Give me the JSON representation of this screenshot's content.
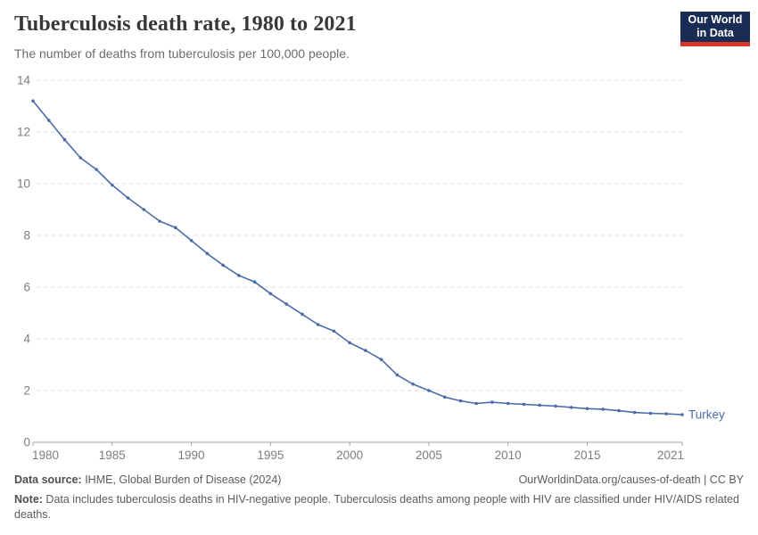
{
  "header": {
    "title": "Tuberculosis death rate, 1980 to 2021",
    "subtitle": "The number of deaths from tuberculosis per 100,000 people.",
    "logo": {
      "line1": "Our World",
      "line2": "in Data",
      "bg_color": "#192d54",
      "accent_color": "#d8352b"
    }
  },
  "chart_data": {
    "type": "line",
    "title": "Tuberculosis death rate, 1980 to 2021",
    "xlabel": "",
    "ylabel": "",
    "xlim": [
      1980,
      2021
    ],
    "ylim": [
      0,
      14
    ],
    "xticks": [
      1980,
      1985,
      1990,
      1995,
      2000,
      2005,
      2010,
      2015,
      2021
    ],
    "yticks": [
      0,
      2,
      4,
      6,
      8,
      10,
      12,
      14
    ],
    "grid": "horizontal-dashed",
    "legend_position": "end-of-line-label",
    "x": [
      1980,
      1981,
      1982,
      1983,
      1984,
      1985,
      1986,
      1987,
      1988,
      1989,
      1990,
      1991,
      1992,
      1993,
      1994,
      1995,
      1996,
      1997,
      1998,
      1999,
      2000,
      2001,
      2002,
      2003,
      2004,
      2005,
      2006,
      2007,
      2008,
      2009,
      2010,
      2011,
      2012,
      2013,
      2014,
      2015,
      2016,
      2017,
      2018,
      2019,
      2020,
      2021
    ],
    "series": [
      {
        "name": "Turkey",
        "color": "#4C6CA9",
        "values": [
          13.2,
          12.45,
          11.7,
          11.0,
          10.55,
          9.95,
          9.45,
          9.0,
          8.55,
          8.3,
          7.8,
          7.3,
          6.85,
          6.45,
          6.2,
          5.75,
          5.35,
          4.95,
          4.55,
          4.3,
          3.85,
          3.55,
          3.2,
          2.6,
          2.25,
          2.0,
          1.75,
          1.6,
          1.5,
          1.55,
          1.5,
          1.47,
          1.43,
          1.4,
          1.35,
          1.3,
          1.28,
          1.22,
          1.15,
          1.12,
          1.1,
          1.07
        ]
      }
    ],
    "style": {
      "grid_color": "#d9d9d9",
      "axis_color": "#a3a3a3",
      "tick_label_color": "#7d7d7d",
      "tick_font_size": 13.5,
      "entity_label_font_size": 13.5
    }
  },
  "footer": {
    "source_label": "Data source:",
    "source_text": " IHME, Global Burden of Disease (2024)",
    "license_text": "OurWorldinData.org/causes-of-death | CC BY",
    "note_label": "Note:",
    "note_text": " Data includes tuberculosis deaths in HIV-negative people. Tuberculosis deaths among people with HIV are classified under HIV/AIDS related deaths."
  }
}
